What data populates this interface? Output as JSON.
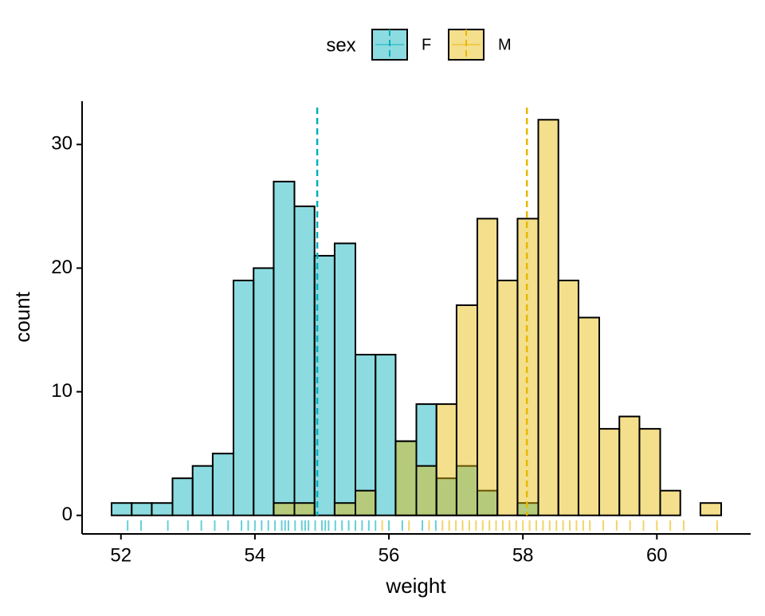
{
  "chart_data": {
    "type": "histogram",
    "x_label": "weight",
    "y_label": "count",
    "legend_title": "sex",
    "bins": [
      51.86,
      52.16,
      52.46,
      52.77,
      53.07,
      53.37,
      53.68,
      53.98,
      54.28,
      54.59,
      54.89,
      55.19,
      55.5,
      55.8,
      56.1,
      56.41,
      56.71,
      57.01,
      57.32,
      57.62,
      57.92,
      58.23,
      58.53,
      58.83,
      59.14,
      59.44,
      59.74,
      60.05,
      60.35,
      60.65,
      60.96
    ],
    "series": [
      {
        "name": "F",
        "color": "#00AFBB",
        "mean": 54.93,
        "values": [
          1,
          1,
          1,
          3,
          4,
          5,
          19,
          20,
          27,
          25,
          21,
          22,
          13,
          13,
          6,
          9,
          3,
          4,
          2,
          0,
          1,
          0,
          0,
          0,
          0,
          0,
          0,
          0,
          0,
          0
        ],
        "rug": [
          52.1,
          52.3,
          52.7,
          53.0,
          53.2,
          53.4,
          53.6,
          53.8,
          53.9,
          54.0,
          54.1,
          54.2,
          54.3,
          54.4,
          54.45,
          54.5,
          54.6,
          54.7,
          54.75,
          54.8,
          54.9,
          55.0,
          55.05,
          55.1,
          55.2,
          55.3,
          55.4,
          55.5,
          55.6,
          55.7,
          55.8,
          56.0,
          56.2,
          56.5,
          56.7
        ]
      },
      {
        "name": "M",
        "color": "#E7B800",
        "mean": 58.06,
        "values": [
          0,
          0,
          0,
          0,
          0,
          0,
          0,
          0,
          1,
          1,
          0,
          1,
          2,
          0,
          6,
          4,
          9,
          17,
          24,
          19,
          24,
          32,
          19,
          16,
          7,
          8,
          7,
          2,
          0,
          1
        ],
        "rug": [
          55.9,
          56.3,
          56.6,
          56.8,
          56.9,
          57.0,
          57.1,
          57.2,
          57.3,
          57.4,
          57.5,
          57.6,
          57.7,
          57.8,
          57.9,
          58.0,
          58.1,
          58.2,
          58.3,
          58.4,
          58.5,
          58.6,
          58.7,
          58.8,
          58.9,
          59.0,
          59.2,
          59.4,
          59.6,
          59.8,
          60.0,
          60.2,
          60.4,
          60.9
        ]
      }
    ],
    "xlim": [
      51.42,
      61.4
    ],
    "xticks": [
      52,
      54,
      56,
      58,
      60
    ],
    "ylim": [
      -1.5,
      33.5
    ],
    "yticks": [
      0,
      10,
      20,
      30
    ],
    "legend_position": "top",
    "grid": false
  }
}
